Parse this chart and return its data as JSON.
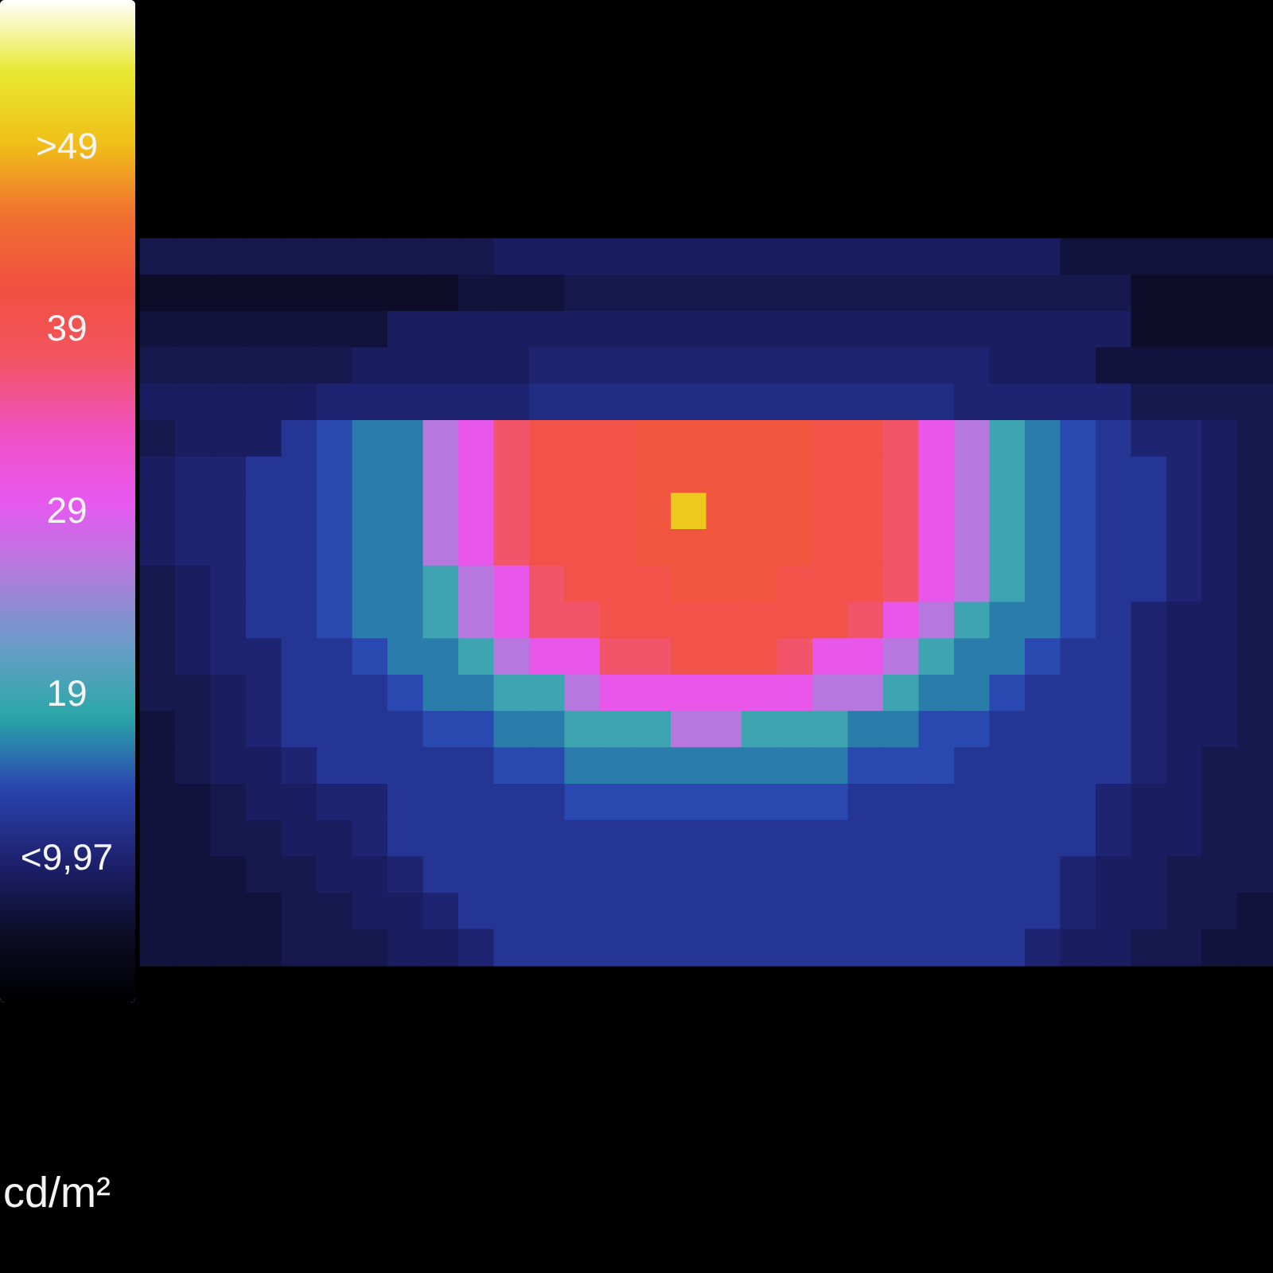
{
  "chart_data": {
    "type": "heatmap",
    "clabel": "cd/m²",
    "categories": [
      null,
      null,
      null,
      null,
      null,
      null,
      null,
      null,
      null,
      null,
      null,
      null,
      null,
      null,
      null,
      null,
      null,
      null,
      null,
      null,
      null,
      null,
      null,
      null,
      null,
      null,
      null,
      null,
      null,
      null,
      null,
      null
    ],
    "y_categories": [
      null,
      null,
      null,
      null,
      null,
      null,
      null,
      null,
      null,
      null,
      null,
      null,
      null,
      null,
      null,
      null,
      null,
      null,
      null,
      null
    ],
    "clim": [
      2,
      57
    ],
    "cticks": [
      {
        "value": 49,
        "label": ">49"
      },
      39,
      29,
      19,
      {
        "value": 9.97,
        "label": "<9,97"
      }
    ],
    "cells": [
      [
        8,
        8,
        8,
        8,
        8,
        8,
        8,
        8,
        8,
        8,
        9,
        9,
        9,
        9,
        9,
        9,
        9,
        9,
        9,
        9,
        9,
        9,
        9,
        9,
        9,
        9,
        7,
        7,
        7,
        7,
        7,
        7
      ],
      [
        6,
        6,
        6,
        6,
        6,
        6,
        6,
        6,
        6,
        7,
        7,
        7,
        8,
        8,
        8,
        8,
        8,
        8,
        8,
        8,
        8,
        8,
        8,
        8,
        8,
        8,
        8,
        8,
        6,
        6,
        6,
        6
      ],
      [
        7,
        7,
        7,
        7,
        7,
        7,
        7,
        9,
        9,
        9,
        9,
        9,
        9,
        9,
        9,
        9,
        9,
        9,
        9,
        9,
        9,
        9,
        9,
        9,
        9,
        9,
        9,
        9,
        6,
        6,
        6,
        6
      ],
      [
        8,
        8,
        8,
        8,
        8,
        8,
        9,
        9,
        9,
        9,
        9,
        10,
        10,
        10,
        10,
        10,
        10,
        10,
        10,
        10,
        10,
        10,
        10,
        10,
        9,
        9,
        9,
        7,
        7,
        7,
        7,
        7
      ],
      [
        9,
        9,
        9,
        9,
        9,
        10,
        10,
        10,
        10,
        10,
        10,
        11,
        11,
        11,
        11,
        11,
        11,
        11,
        11,
        11,
        11,
        11,
        11,
        10,
        10,
        10,
        10,
        10,
        8,
        8,
        8,
        8
      ],
      [
        8,
        9,
        9,
        9,
        12,
        14,
        16,
        16,
        26,
        30,
        37,
        40,
        40,
        40,
        42,
        42,
        42,
        42,
        42,
        40,
        40,
        37,
        30,
        26,
        19,
        16,
        14,
        12,
        10,
        10,
        9,
        8
      ],
      [
        9,
        10,
        10,
        12,
        12,
        14,
        16,
        16,
        26,
        30,
        37,
        40,
        40,
        40,
        42,
        42,
        42,
        42,
        42,
        40,
        40,
        37,
        30,
        26,
        19,
        16,
        14,
        12,
        12,
        10,
        9,
        8
      ],
      [
        9,
        10,
        10,
        12,
        12,
        14,
        16,
        16,
        26,
        30,
        37,
        40,
        40,
        40,
        42,
        50,
        42,
        42,
        42,
        40,
        40,
        37,
        30,
        26,
        19,
        16,
        14,
        12,
        12,
        10,
        9,
        8
      ],
      [
        9,
        10,
        10,
        12,
        12,
        14,
        16,
        16,
        26,
        30,
        37,
        40,
        40,
        40,
        42,
        42,
        42,
        42,
        42,
        40,
        40,
        37,
        30,
        26,
        19,
        16,
        14,
        12,
        12,
        10,
        9,
        8
      ],
      [
        8,
        9,
        10,
        12,
        12,
        14,
        16,
        16,
        19,
        26,
        30,
        37,
        40,
        40,
        40,
        42,
        42,
        42,
        40,
        40,
        40,
        37,
        30,
        26,
        19,
        16,
        14,
        12,
        12,
        10,
        9,
        8
      ],
      [
        8,
        9,
        10,
        12,
        12,
        14,
        16,
        16,
        19,
        26,
        30,
        37,
        37,
        40,
        40,
        40,
        40,
        40,
        40,
        40,
        37,
        30,
        26,
        19,
        16,
        16,
        14,
        12,
        10,
        9,
        9,
        8
      ],
      [
        8,
        9,
        10,
        10,
        12,
        12,
        14,
        16,
        16,
        19,
        26,
        30,
        30,
        37,
        37,
        40,
        40,
        40,
        37,
        30,
        30,
        26,
        19,
        16,
        16,
        14,
        12,
        12,
        10,
        9,
        9,
        8
      ],
      [
        8,
        8,
        9,
        10,
        12,
        12,
        12,
        14,
        16,
        16,
        19,
        19,
        26,
        30,
        30,
        30,
        30,
        30,
        30,
        26,
        26,
        19,
        16,
        16,
        14,
        12,
        12,
        12,
        10,
        9,
        9,
        8
      ],
      [
        7,
        8,
        9,
        10,
        12,
        12,
        12,
        12,
        14,
        14,
        16,
        16,
        19,
        19,
        19,
        26,
        26,
        19,
        19,
        19,
        16,
        16,
        14,
        14,
        12,
        12,
        12,
        12,
        10,
        9,
        9,
        8
      ],
      [
        7,
        8,
        9,
        9,
        10,
        12,
        12,
        12,
        12,
        12,
        14,
        14,
        16,
        16,
        16,
        16,
        16,
        16,
        16,
        16,
        14,
        14,
        14,
        12,
        12,
        12,
        12,
        12,
        10,
        9,
        8,
        8
      ],
      [
        7,
        7,
        8,
        9,
        9,
        10,
        10,
        12,
        12,
        12,
        12,
        12,
        14,
        14,
        14,
        14,
        14,
        14,
        14,
        14,
        12,
        12,
        12,
        12,
        12,
        12,
        12,
        10,
        9,
        9,
        8,
        8
      ],
      [
        7,
        7,
        8,
        8,
        9,
        9,
        10,
        12,
        12,
        12,
        12,
        12,
        12,
        12,
        12,
        12,
        12,
        12,
        12,
        12,
        12,
        12,
        12,
        12,
        12,
        12,
        12,
        10,
        9,
        9,
        8,
        8
      ],
      [
        7,
        7,
        7,
        8,
        8,
        9,
        9,
        10,
        12,
        12,
        12,
        12,
        12,
        12,
        12,
        12,
        12,
        12,
        12,
        12,
        12,
        12,
        12,
        12,
        12,
        12,
        10,
        9,
        9,
        8,
        8,
        8
      ],
      [
        7,
        7,
        7,
        7,
        8,
        8,
        9,
        9,
        10,
        12,
        12,
        12,
        12,
        12,
        12,
        12,
        12,
        12,
        12,
        12,
        12,
        12,
        12,
        12,
        12,
        12,
        10,
        9,
        9,
        8,
        8,
        7
      ],
      [
        7,
        7,
        7,
        7,
        8,
        8,
        8,
        9,
        9,
        10,
        12,
        12,
        12,
        12,
        12,
        12,
        12,
        12,
        12,
        12,
        12,
        12,
        12,
        12,
        12,
        10,
        9,
        9,
        8,
        8,
        7,
        7
      ]
    ]
  }
}
